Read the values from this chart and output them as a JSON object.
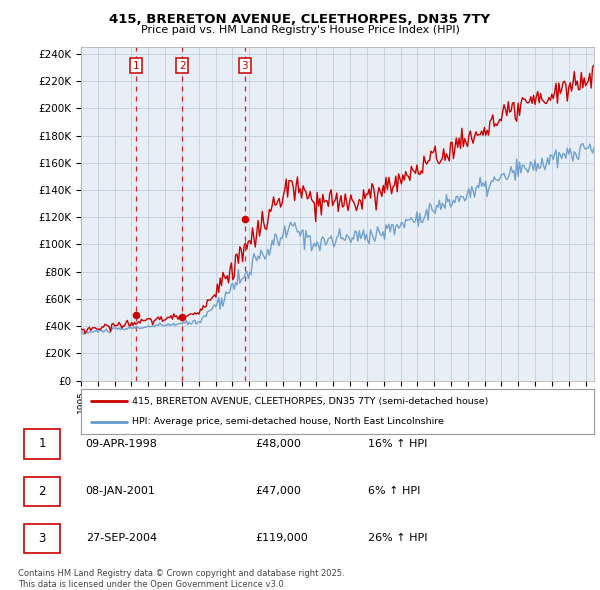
{
  "title1": "415, BRERETON AVENUE, CLEETHORPES, DN35 7TY",
  "title2": "Price paid vs. HM Land Registry's House Price Index (HPI)",
  "legend_line1": "415, BRERETON AVENUE, CLEETHORPES, DN35 7TY (semi-detached house)",
  "legend_line2": "HPI: Average price, semi-detached house, North East Lincolnshire",
  "sale_color": "#cc0000",
  "hpi_color": "#6699cc",
  "vline_color": "#cc0000",
  "chart_bg": "#e8eef5",
  "purchases": [
    {
      "label": "1",
      "date": "09-APR-1998",
      "price": 48000,
      "hpi_pct": "16% ↑ HPI"
    },
    {
      "label": "2",
      "date": "08-JAN-2001",
      "price": 47000,
      "hpi_pct": "6% ↑ HPI"
    },
    {
      "label": "3",
      "date": "27-SEP-2004",
      "price": 119000,
      "hpi_pct": "26% ↑ HPI"
    }
  ],
  "purchase_years": [
    1998.27,
    2001.02,
    2004.74
  ],
  "purchase_prices": [
    48000,
    47000,
    119000
  ],
  "footnote": "Contains HM Land Registry data © Crown copyright and database right 2025.\nThis data is licensed under the Open Government Licence v3.0.",
  "ylim": [
    0,
    245000
  ],
  "yticks": [
    0,
    20000,
    40000,
    60000,
    80000,
    100000,
    120000,
    140000,
    160000,
    180000,
    200000,
    220000,
    240000
  ],
  "bg_color": "#ffffff",
  "grid_color": "#c8d4e0"
}
